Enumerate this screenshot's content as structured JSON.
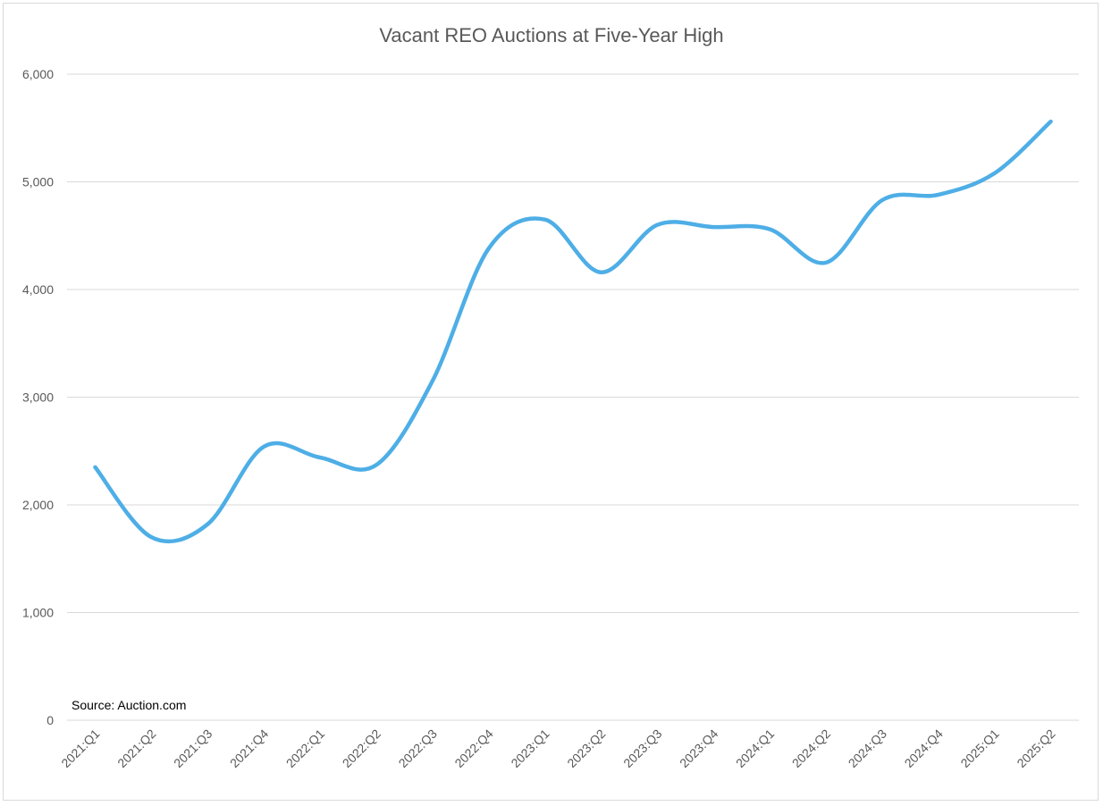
{
  "chart_data": {
    "type": "line",
    "title": "Vacant REO Auctions at Five-Year High",
    "xlabel": "",
    "ylabel": "",
    "categories": [
      "2021:Q1",
      "2021:Q2",
      "2021:Q3",
      "2021:Q4",
      "2022:Q1",
      "2022:Q2",
      "2022:Q3",
      "2022:Q4",
      "2023:Q1",
      "2023:Q2",
      "2023:Q3",
      "2023:Q4",
      "2024:Q1",
      "2024:Q2",
      "2024:Q3",
      "2024:Q4",
      "2025:Q1",
      "2025:Q2"
    ],
    "series": [
      {
        "values": [
          2350,
          1700,
          1820,
          2540,
          2440,
          2370,
          3150,
          4380,
          4650,
          4160,
          4600,
          4580,
          4560,
          4250,
          4830,
          4880,
          5080,
          5560
        ]
      }
    ],
    "ylim": [
      0,
      6000
    ],
    "yticks": [
      0,
      1000,
      2000,
      3000,
      4000,
      5000,
      6000
    ],
    "ytick_labels": [
      "0",
      "1,000",
      "2,000",
      "3,000",
      "4,000",
      "5,000",
      "6,000"
    ],
    "grid": true,
    "legend": "none",
    "annotation": "Source: Auction.com",
    "colors": {
      "line": "#4eaee6",
      "grid": "#d9d9d9",
      "text": "#595959",
      "border": "#d9d9d9"
    }
  }
}
